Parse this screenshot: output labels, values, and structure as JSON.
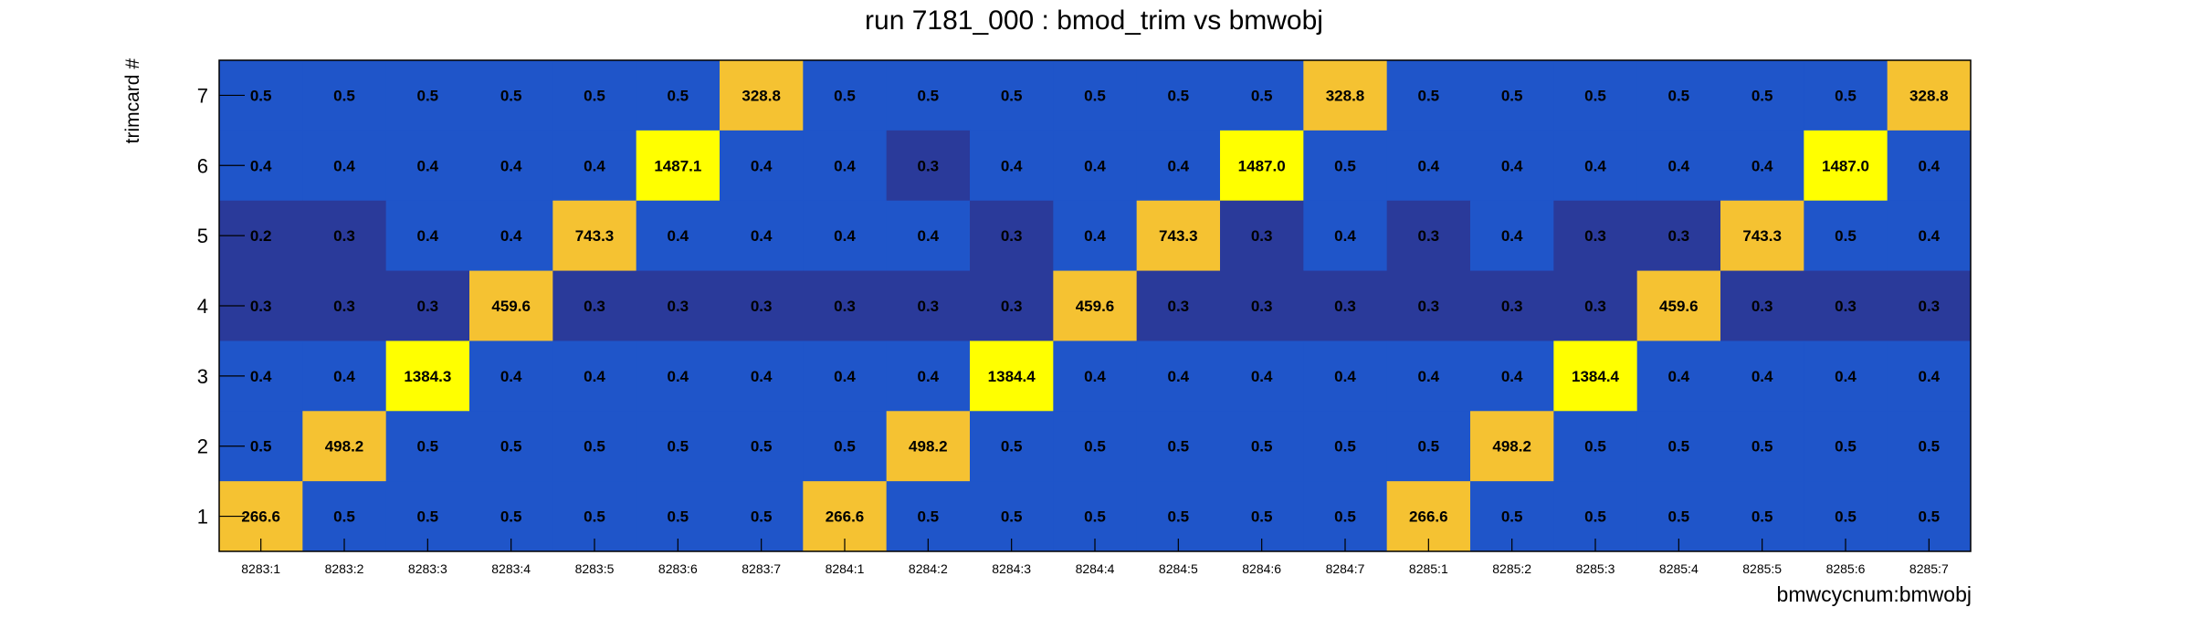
{
  "chart_data": {
    "type": "heatmap",
    "title": "run 7181_000 : bmod_trim vs bmwobj",
    "xlabel": "bmwcycnum:bmwobj",
    "ylabel": "trimcard #",
    "categories": [
      "8283:1",
      "8283:2",
      "8283:3",
      "8283:4",
      "8283:5",
      "8283:6",
      "8283:7",
      "8284:1",
      "8284:2",
      "8284:3",
      "8284:4",
      "8284:5",
      "8284:6",
      "8284:7",
      "8285:1",
      "8285:2",
      "8285:3",
      "8285:4",
      "8285:5",
      "8285:6",
      "8285:7"
    ],
    "y_categories": [
      "1",
      "2",
      "3",
      "4",
      "5",
      "6",
      "7"
    ],
    "rows": [
      {
        "y": "7",
        "values": [
          "0.5",
          "0.5",
          "0.5",
          "0.5",
          "0.5",
          "0.5",
          "328.8",
          "0.5",
          "0.5",
          "0.5",
          "0.5",
          "0.5",
          "0.5",
          "328.8",
          "0.5",
          "0.5",
          "0.5",
          "0.5",
          "0.5",
          "0.5",
          "328.8"
        ]
      },
      {
        "y": "6",
        "values": [
          "0.4",
          "0.4",
          "0.4",
          "0.4",
          "0.4",
          "1487.1",
          "0.4",
          "0.4",
          "0.3",
          "0.4",
          "0.4",
          "0.4",
          "1487.0",
          "0.5",
          "0.4",
          "0.4",
          "0.4",
          "0.4",
          "0.4",
          "1487.0",
          "0.4"
        ]
      },
      {
        "y": "5",
        "values": [
          "0.2",
          "0.3",
          "0.4",
          "0.4",
          "743.3",
          "0.4",
          "0.4",
          "0.4",
          "0.4",
          "0.3",
          "0.4",
          "743.3",
          "0.3",
          "0.4",
          "0.3",
          "0.4",
          "0.3",
          "0.3",
          "743.3",
          "0.5",
          "0.4"
        ]
      },
      {
        "y": "4",
        "values": [
          "0.3",
          "0.3",
          "0.3",
          "459.6",
          "0.3",
          "0.3",
          "0.3",
          "0.3",
          "0.3",
          "0.3",
          "459.6",
          "0.3",
          "0.3",
          "0.3",
          "0.3",
          "0.3",
          "0.3",
          "459.6",
          "0.3",
          "0.3",
          "0.3"
        ]
      },
      {
        "y": "3",
        "values": [
          "0.4",
          "0.4",
          "1384.3",
          "0.4",
          "0.4",
          "0.4",
          "0.4",
          "0.4",
          "0.4",
          "1384.4",
          "0.4",
          "0.4",
          "0.4",
          "0.4",
          "0.4",
          "0.4",
          "1384.4",
          "0.4",
          "0.4",
          "0.4",
          "0.4"
        ]
      },
      {
        "y": "2",
        "values": [
          "0.5",
          "498.2",
          "0.5",
          "0.5",
          "0.5",
          "0.5",
          "0.5",
          "0.5",
          "498.2",
          "0.5",
          "0.5",
          "0.5",
          "0.5",
          "0.5",
          "0.5",
          "498.2",
          "0.5",
          "0.5",
          "0.5",
          "0.5",
          "0.5"
        ]
      },
      {
        "y": "1",
        "values": [
          "266.6",
          "0.5",
          "0.5",
          "0.5",
          "0.5",
          "0.5",
          "0.5",
          "266.6",
          "0.5",
          "0.5",
          "0.5",
          "0.5",
          "0.5",
          "0.5",
          "266.6",
          "0.5",
          "0.5",
          "0.5",
          "0.5",
          "0.5",
          "0.5"
        ]
      }
    ],
    "colors": {
      "low": "#2a3a9a",
      "mid": "#1f55c9",
      "high_mid": "#f5c232",
      "high": "#ffff00",
      "frame": "#000000",
      "text": "#000000"
    }
  }
}
